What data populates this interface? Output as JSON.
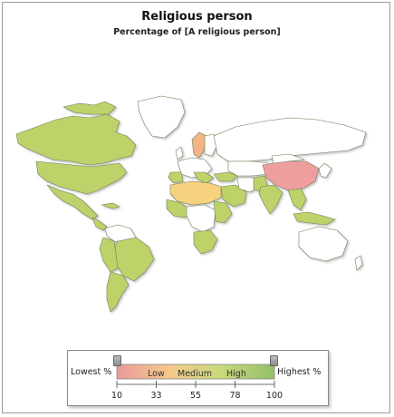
{
  "title": "Religious person",
  "subtitle": "Percentage of [A religious person]",
  "legend": {
    "lowest_label": "Lowest %",
    "highest_label": "Highest %",
    "zones": [
      "Low",
      "Medium",
      "High"
    ],
    "ticks": [
      "10",
      "33",
      "55",
      "78",
      "100"
    ],
    "gradient_colors": [
      "#e89a9a",
      "#f5c98a",
      "#c9d97a",
      "#93bf6a"
    ]
  },
  "colors": {
    "low": "#ef9e9e",
    "low_medium": "#f4b483",
    "medium": "#f7d27e",
    "high": "#bdd36a",
    "no_data": "#ffffff",
    "border": "#7b8f5a",
    "ocean_shadow": "#dcdcdc"
  }
}
